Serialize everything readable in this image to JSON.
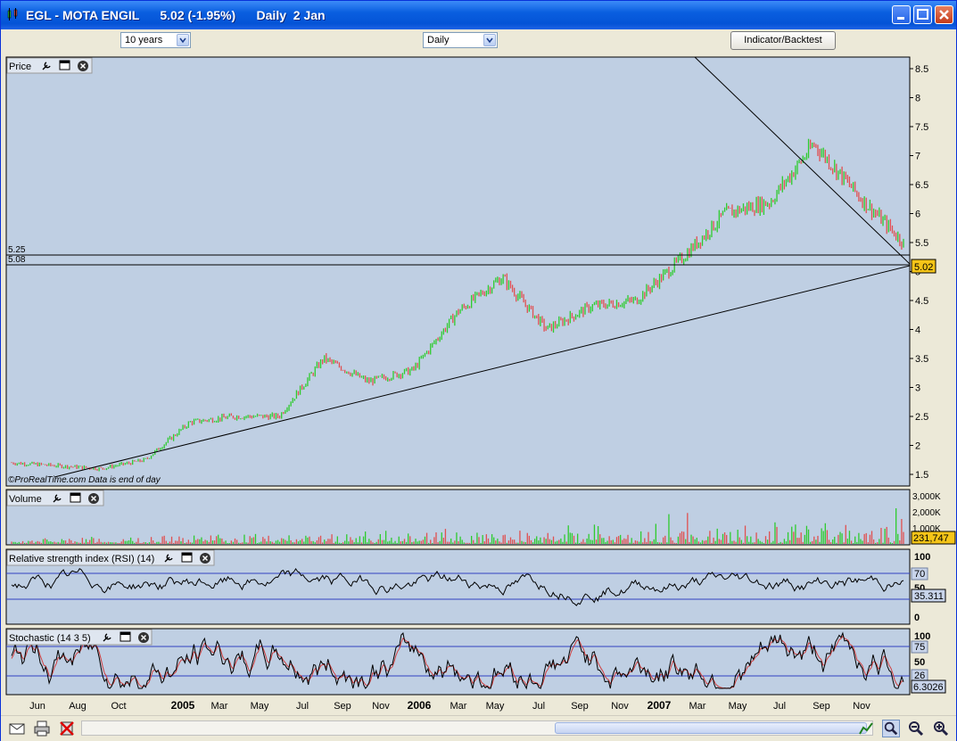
{
  "window": {
    "title": "EGL - MOTA ENGIL      5.02 (-1.95%)      Daily  2 Jan"
  },
  "toolbar": {
    "range_select": "10 years",
    "period_select": "Daily",
    "indicator_button": "Indicator/Backtest"
  },
  "colors": {
    "panel_bg": "#bfcfe3",
    "up": "#2ecb2e",
    "down": "#e05050",
    "last_price_bg": "#f5c518",
    "rsi_band": "#3040c0"
  },
  "price_panel": {
    "label": "Price",
    "hline_labels": [
      "5.25",
      "5.08"
    ],
    "last_price": "5.02",
    "copyright": "©ProRealTime.com  Data is end of day",
    "y_ticks": [
      "8.5",
      "8",
      "7.5",
      "7",
      "6.5",
      "6",
      "5.5",
      "5",
      "4.5",
      "4",
      "3.5",
      "3",
      "2.5",
      "2",
      "1.5"
    ]
  },
  "volume_panel": {
    "label": "Volume",
    "y_ticks": [
      "3,000K",
      "2,000K",
      "1,000K"
    ],
    "last_value": "231,747"
  },
  "rsi_panel": {
    "label": "Relative strength index (RSI) (14)",
    "y_ticks": [
      "100",
      "70",
      "50",
      "0"
    ],
    "last_value": "35.311"
  },
  "stoch_panel": {
    "label": "Stochastic (14 3 5)",
    "y_ticks": [
      "100",
      "75",
      "50",
      "26"
    ],
    "last_value": "6.3026"
  },
  "x_axis": {
    "labels": [
      "Jun",
      "Aug",
      "Oct",
      "2005",
      "Mar",
      "May",
      "Jul",
      "Sep",
      "Nov",
      "2006",
      "Mar",
      "May",
      "Jul",
      "Sep",
      "Nov",
      "2007",
      "Mar",
      "May",
      "Jul",
      "Sep",
      "Nov"
    ],
    "bold": [
      "2005",
      "2006",
      "2007"
    ]
  },
  "chart_data": {
    "type": "line",
    "title": "EGL - MOTA ENGIL",
    "period": "Daily",
    "last": 5.02,
    "change_pct": -1.95,
    "ylim": [
      1.3,
      8.7
    ],
    "horizontal_levels": [
      5.25,
      5.08
    ],
    "categories": [
      "Jun",
      "Aug",
      "Oct",
      "2005",
      "Mar",
      "May",
      "Jul",
      "Sep",
      "Nov",
      "2006",
      "Mar",
      "May",
      "Jul",
      "Sep",
      "Nov",
      "2007",
      "Mar",
      "May",
      "Jul",
      "Sep",
      "Nov"
    ],
    "series": [
      {
        "values": [
          1.7,
          1.65,
          1.6,
          1.75,
          2.4,
          2.5,
          2.5,
          3.5,
          3.1,
          3.3,
          4.3,
          4.9,
          4.0,
          4.4,
          4.5,
          5.2,
          6.0,
          6.2,
          7.2,
          6.3,
          5.5
        ]
      }
    ]
  }
}
